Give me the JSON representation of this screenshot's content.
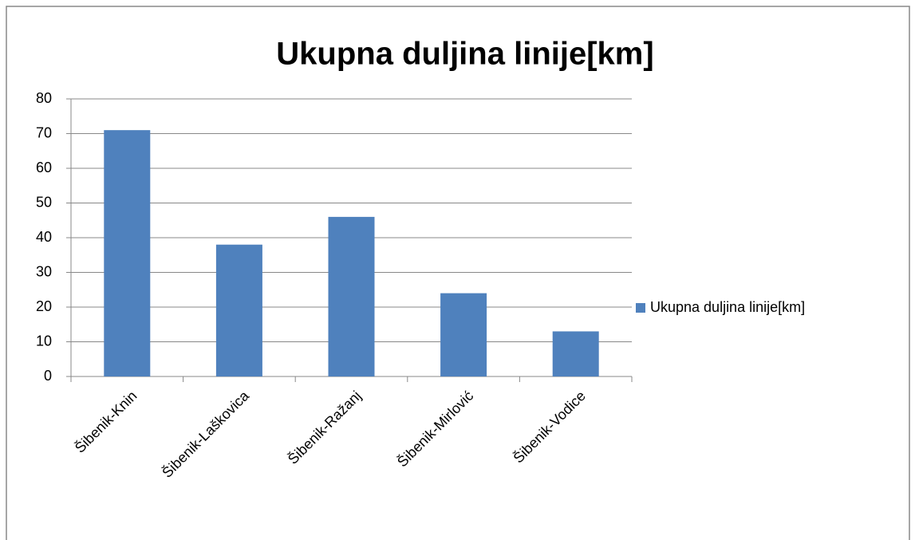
{
  "chart_data": {
    "type": "bar",
    "title": "Ukupna duljina linije[km]",
    "categories": [
      "Šibenik-Knin",
      "Šibenik-Laškovica",
      "Šibenik-Ražanj",
      "Šibenik-Mirlović",
      "Šibenik-Vodice"
    ],
    "series": [
      {
        "name": "Ukupna duljina linije[km]",
        "color": "#4f81bd",
        "values": [
          71,
          38,
          46,
          24,
          13
        ]
      }
    ],
    "ylim": [
      0,
      80
    ],
    "yticks": [
      0,
      10,
      20,
      30,
      40,
      50,
      60,
      70,
      80
    ],
    "grid": true,
    "legend": "right"
  }
}
